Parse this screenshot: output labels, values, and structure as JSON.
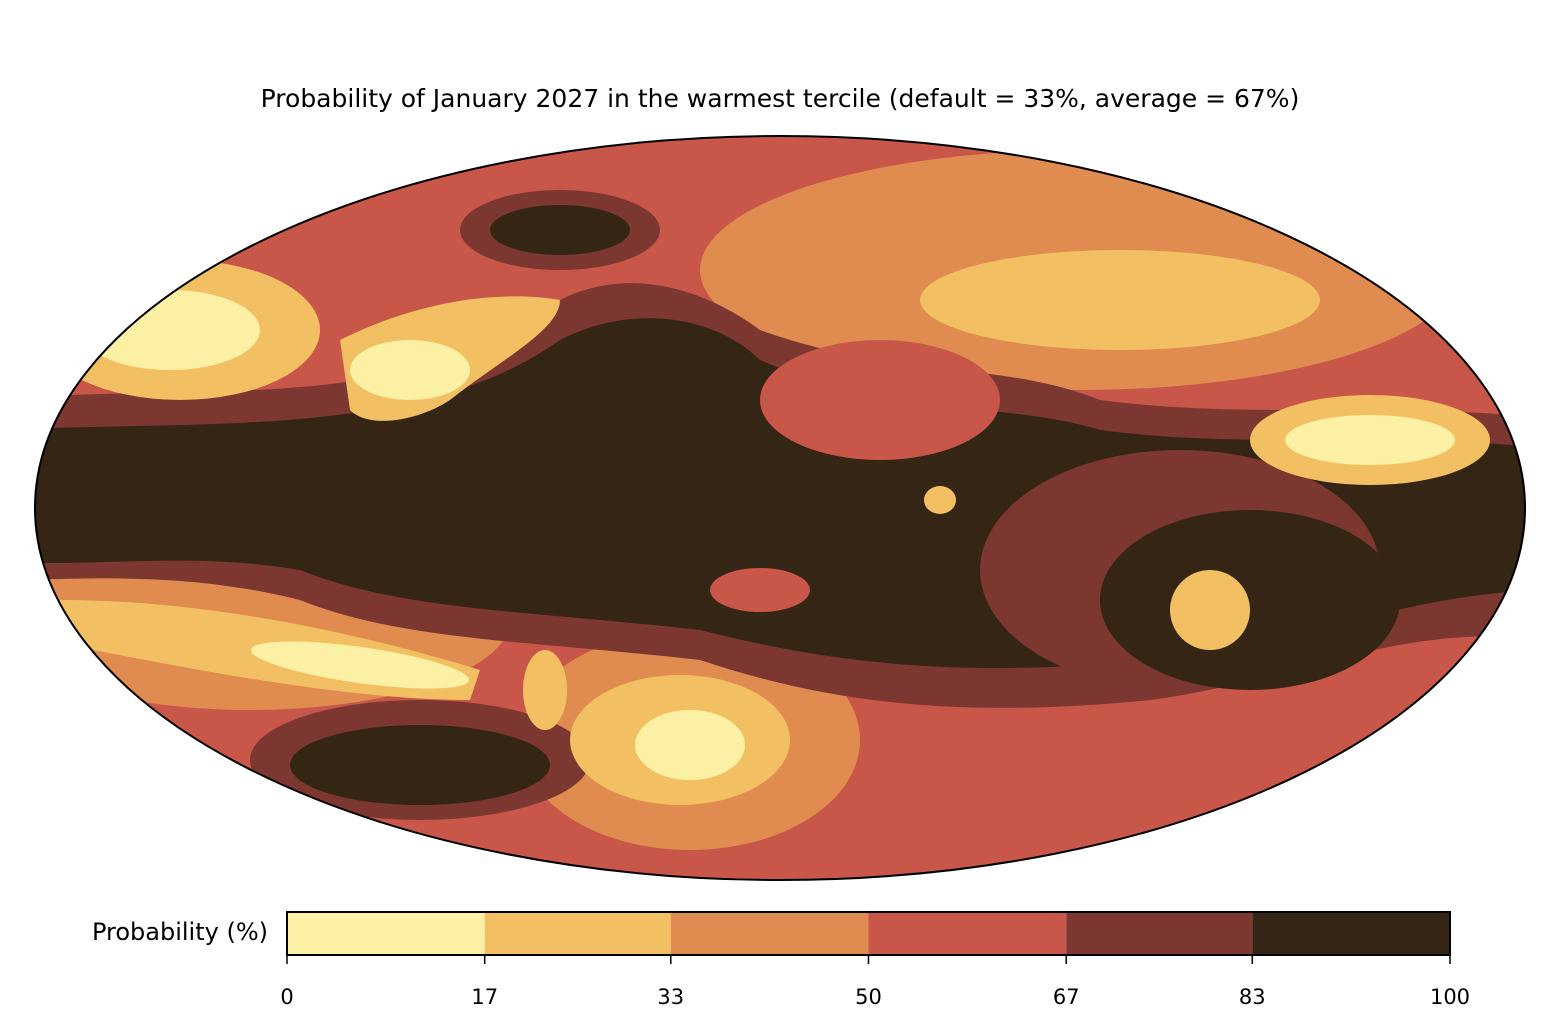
{
  "title": "Probability of January 2027 in the warmest tercile (default = 33%, average = 67%)",
  "colorbar": {
    "label": "Probability (%)",
    "lim": [
      0,
      100
    ],
    "ticks": [
      0,
      17,
      33,
      50,
      67,
      83,
      100
    ],
    "colors": [
      "#fcf0a5",
      "#f2c062",
      "#e08c50",
      "#c8574a",
      "#7b3730",
      "#352515"
    ]
  }
}
